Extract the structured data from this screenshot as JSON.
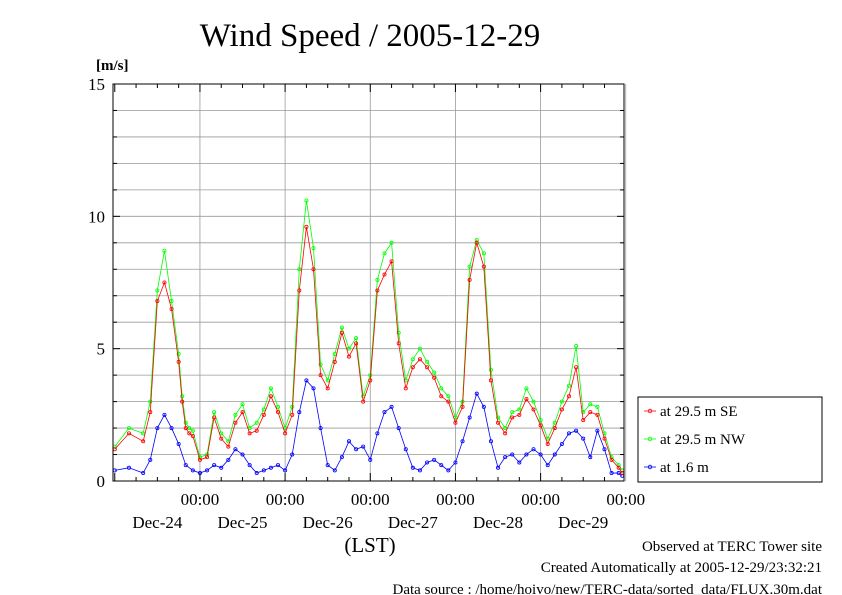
{
  "chart_data": {
    "type": "line",
    "title": "Wind Speed / 2005-12-29",
    "ylabel": "[m/s]",
    "xlabel": "(LST)",
    "ylim": [
      0,
      15
    ],
    "yticks": [
      0,
      5,
      10,
      15
    ],
    "xlim_hours": [
      -0.5,
      143.5
    ],
    "xticks": [
      {
        "time": "00:00",
        "day": "Dec-24"
      },
      {
        "time": "00:00",
        "day": "Dec-25"
      },
      {
        "time": "00:00",
        "day": "Dec-26"
      },
      {
        "time": "00:00",
        "day": "Dec-27"
      },
      {
        "time": "00:00",
        "day": "Dec-28"
      },
      {
        "time": "00:00",
        "day": "Dec-29"
      }
    ],
    "grid": true,
    "legend_position": "right-bottom",
    "series": [
      {
        "name": "at 29.5 m SE",
        "color": "#ff0000",
        "x": [
          0,
          4,
          8,
          10,
          12,
          14,
          16,
          18,
          19,
          20,
          21,
          22,
          24,
          26,
          28,
          30,
          32,
          34,
          36,
          38,
          40,
          42,
          44,
          46,
          48,
          50,
          52,
          54,
          56,
          58,
          60,
          62,
          64,
          66,
          68,
          70,
          72,
          74,
          76,
          78,
          80,
          82,
          84,
          86,
          88,
          90,
          92,
          94,
          96,
          98,
          100,
          102,
          104,
          106,
          108,
          110,
          112,
          114,
          116,
          118,
          120,
          122,
          124,
          126,
          128,
          130,
          132,
          134,
          136,
          138,
          140,
          142,
          143
        ],
        "y": [
          1.2,
          1.8,
          1.5,
          2.6,
          6.8,
          7.5,
          6.5,
          4.5,
          3.0,
          2.0,
          1.8,
          1.7,
          0.8,
          0.9,
          2.4,
          1.6,
          1.3,
          2.2,
          2.6,
          1.8,
          1.9,
          2.5,
          3.2,
          2.6,
          1.8,
          2.5,
          7.2,
          9.6,
          8.0,
          4.0,
          3.5,
          4.5,
          5.6,
          4.7,
          5.2,
          3.0,
          3.8,
          7.2,
          7.8,
          8.3,
          5.2,
          3.5,
          4.3,
          4.6,
          4.3,
          3.9,
          3.2,
          3.0,
          2.2,
          2.8,
          7.6,
          9.0,
          8.1,
          3.8,
          2.2,
          1.8,
          2.4,
          2.5,
          3.1,
          2.7,
          2.1,
          1.4,
          2.0,
          2.7,
          3.2,
          4.3,
          2.3,
          2.6,
          2.5,
          1.6,
          0.8,
          0.5,
          0.3
        ]
      },
      {
        "name": "at 29.5 m NW",
        "color": "#00ff00",
        "x": [
          0,
          4,
          8,
          10,
          12,
          14,
          16,
          18,
          19,
          20,
          21,
          22,
          24,
          26,
          28,
          30,
          32,
          34,
          36,
          38,
          40,
          42,
          44,
          46,
          48,
          50,
          52,
          54,
          56,
          58,
          60,
          62,
          64,
          66,
          68,
          70,
          72,
          74,
          76,
          78,
          80,
          82,
          84,
          86,
          88,
          90,
          92,
          94,
          96,
          98,
          100,
          102,
          104,
          106,
          108,
          110,
          112,
          114,
          116,
          118,
          120,
          122,
          124,
          126,
          128,
          130,
          132,
          134,
          136,
          138,
          140,
          142,
          143
        ],
        "y": [
          1.3,
          2.0,
          1.8,
          3.0,
          7.2,
          8.7,
          6.8,
          4.8,
          3.2,
          2.2,
          2.0,
          1.9,
          0.9,
          1.0,
          2.6,
          1.8,
          1.5,
          2.5,
          2.9,
          2.0,
          2.2,
          2.7,
          3.5,
          2.8,
          2.0,
          2.8,
          8.0,
          10.6,
          8.8,
          4.4,
          3.8,
          4.8,
          5.8,
          5.0,
          5.4,
          3.2,
          4.0,
          7.6,
          8.6,
          9.0,
          5.6,
          3.8,
          4.6,
          5.0,
          4.5,
          4.1,
          3.5,
          3.2,
          2.4,
          3.0,
          8.1,
          9.1,
          8.6,
          4.2,
          2.4,
          2.0,
          2.6,
          2.7,
          3.5,
          3.0,
          2.3,
          1.6,
          2.2,
          3.0,
          3.6,
          5.1,
          2.6,
          2.9,
          2.8,
          1.8,
          0.9,
          0.6,
          0.4
        ]
      },
      {
        "name": "at 1.6 m",
        "color": "#0000ff",
        "x": [
          0,
          4,
          8,
          10,
          12,
          14,
          16,
          18,
          20,
          22,
          24,
          26,
          28,
          30,
          32,
          34,
          36,
          38,
          40,
          42,
          44,
          46,
          48,
          50,
          52,
          54,
          56,
          58,
          60,
          62,
          64,
          66,
          68,
          70,
          72,
          74,
          76,
          78,
          80,
          82,
          84,
          86,
          88,
          90,
          92,
          94,
          96,
          98,
          100,
          102,
          104,
          106,
          108,
          110,
          112,
          114,
          116,
          118,
          120,
          122,
          124,
          126,
          128,
          130,
          132,
          134,
          136,
          138,
          140,
          142,
          143
        ],
        "y": [
          0.4,
          0.5,
          0.3,
          0.8,
          2.0,
          2.5,
          2.0,
          1.4,
          0.6,
          0.4,
          0.3,
          0.4,
          0.6,
          0.5,
          0.8,
          1.2,
          1.0,
          0.6,
          0.3,
          0.4,
          0.5,
          0.6,
          0.4,
          1.0,
          2.6,
          3.8,
          3.5,
          2.0,
          0.6,
          0.4,
          0.9,
          1.5,
          1.2,
          1.3,
          0.8,
          1.8,
          2.6,
          2.8,
          2.0,
          1.2,
          0.5,
          0.4,
          0.7,
          0.8,
          0.6,
          0.4,
          0.7,
          1.5,
          2.4,
          3.3,
          2.8,
          1.5,
          0.5,
          0.9,
          1.0,
          0.7,
          1.0,
          1.2,
          1.0,
          0.6,
          1.0,
          1.4,
          1.8,
          1.9,
          1.6,
          0.9,
          1.9,
          1.2,
          0.3,
          0.3,
          0.2
        ]
      }
    ]
  },
  "footer": {
    "observed": "Observed at TERC Tower site",
    "created": "Created Automatically at 2005-12-29/23:32:21",
    "source": "Data source : /home/hoivo/new/TERC-data/sorted_data/FLUX.30m.dat"
  }
}
